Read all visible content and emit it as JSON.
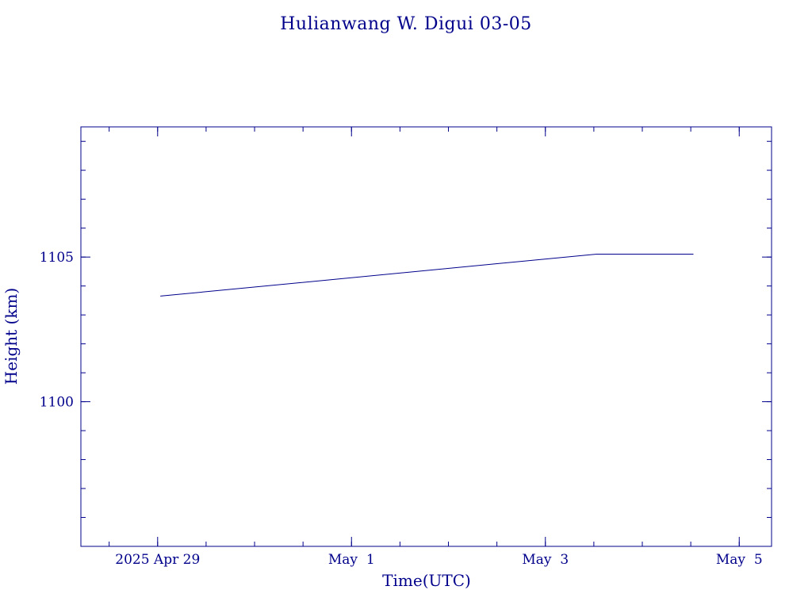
{
  "chart_data": {
    "type": "line",
    "title": "Hulianwang W. Digui 03-05",
    "xlabel": "Time(UTC)",
    "ylabel": "Height (km)",
    "x_range": [
      "2025-04-28T05:00",
      "2025-05-05T08:00"
    ],
    "y_range": [
      1095,
      1109.5
    ],
    "x_ticks": [
      {
        "date": "2025-04-29",
        "label": "2025 Apr 29"
      },
      {
        "date": "2025-05-01",
        "label": "May  1"
      },
      {
        "date": "2025-05-03",
        "label": "May  3"
      },
      {
        "date": "2025-05-05",
        "label": "May  5"
      }
    ],
    "y_ticks": [
      {
        "value": 1100,
        "label": "1100"
      },
      {
        "value": 1105,
        "label": "1105"
      }
    ],
    "series": [
      {
        "points": [
          {
            "x": "2025-04-29T00:40",
            "y": 1103.65
          },
          {
            "x": "2025-05-03T12:40",
            "y": 1105.1
          },
          {
            "x": "2025-05-04T12:40",
            "y": 1105.1
          }
        ]
      }
    ],
    "grid": false,
    "line_color": "#00008b",
    "axis_color": "#00008b"
  }
}
